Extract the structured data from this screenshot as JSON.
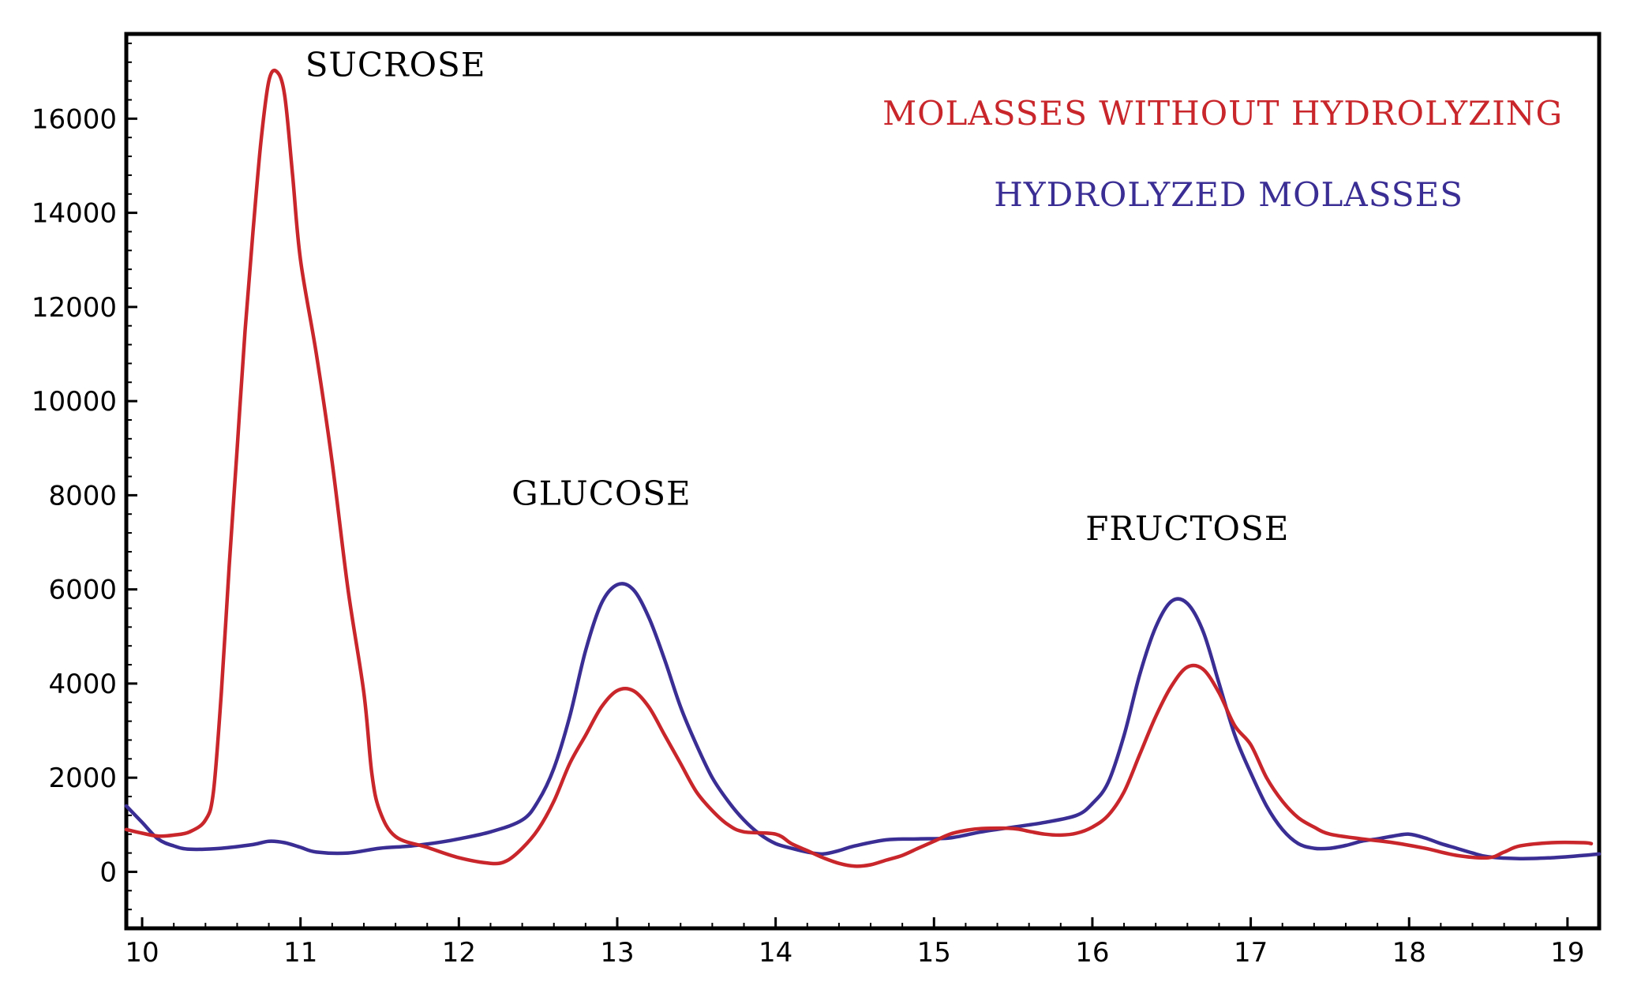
{
  "chart_data": {
    "type": "line",
    "title": "",
    "xlabel": "",
    "ylabel": "",
    "xlim": [
      9.9,
      19.2
    ],
    "ylim": [
      -1200,
      17800
    ],
    "x_ticks": [
      10,
      11,
      12,
      13,
      14,
      15,
      16,
      17,
      18,
      19
    ],
    "x_tick_labels": [
      "10",
      "11",
      "12",
      "13",
      "14",
      "15",
      "16",
      "17",
      "18",
      "19"
    ],
    "y_ticks": [
      0,
      2000,
      4000,
      6000,
      8000,
      10000,
      12000,
      14000,
      16000
    ],
    "y_tick_labels": [
      "0",
      "2000",
      "4000",
      "6000",
      "8000",
      "10000",
      "12000",
      "14000",
      "16000"
    ],
    "grid": false,
    "legend_position": "top-right",
    "annotations": [
      {
        "text": "SUCROSE",
        "x": 11.6,
        "y": 16900
      },
      {
        "text": "GLUCOSE",
        "x": 12.9,
        "y": 7800
      },
      {
        "text": "FRUCTOSE",
        "x": 16.6,
        "y": 7050
      }
    ],
    "series": [
      {
        "name": "MOLASSES WITHOUT HYDROLYZING",
        "color": "#c8262b",
        "points": [
          [
            9.9,
            900
          ],
          [
            10.0,
            820
          ],
          [
            10.1,
            760
          ],
          [
            10.2,
            780
          ],
          [
            10.3,
            850
          ],
          [
            10.4,
            1100
          ],
          [
            10.45,
            1700
          ],
          [
            10.5,
            3800
          ],
          [
            10.55,
            6500
          ],
          [
            10.6,
            9000
          ],
          [
            10.65,
            11500
          ],
          [
            10.7,
            13600
          ],
          [
            10.75,
            15500
          ],
          [
            10.8,
            16800
          ],
          [
            10.85,
            17000
          ],
          [
            10.9,
            16500
          ],
          [
            10.95,
            14800
          ],
          [
            11.0,
            13000
          ],
          [
            11.1,
            11000
          ],
          [
            11.2,
            8700
          ],
          [
            11.3,
            6000
          ],
          [
            11.4,
            3800
          ],
          [
            11.45,
            2100
          ],
          [
            11.5,
            1300
          ],
          [
            11.6,
            750
          ],
          [
            11.8,
            520
          ],
          [
            12.0,
            300
          ],
          [
            12.2,
            180
          ],
          [
            12.3,
            230
          ],
          [
            12.4,
            500
          ],
          [
            12.5,
            900
          ],
          [
            12.6,
            1500
          ],
          [
            12.7,
            2300
          ],
          [
            12.8,
            2900
          ],
          [
            12.9,
            3500
          ],
          [
            13.0,
            3850
          ],
          [
            13.1,
            3850
          ],
          [
            13.2,
            3500
          ],
          [
            13.3,
            2900
          ],
          [
            13.4,
            2300
          ],
          [
            13.5,
            1700
          ],
          [
            13.6,
            1300
          ],
          [
            13.7,
            1000
          ],
          [
            13.8,
            850
          ],
          [
            14.0,
            800
          ],
          [
            14.1,
            600
          ],
          [
            14.2,
            450
          ],
          [
            14.3,
            300
          ],
          [
            14.4,
            180
          ],
          [
            14.5,
            120
          ],
          [
            14.6,
            150
          ],
          [
            14.7,
            250
          ],
          [
            14.8,
            350
          ],
          [
            14.9,
            500
          ],
          [
            15.0,
            650
          ],
          [
            15.1,
            800
          ],
          [
            15.2,
            880
          ],
          [
            15.3,
            920
          ],
          [
            15.5,
            920
          ],
          [
            15.6,
            860
          ],
          [
            15.7,
            800
          ],
          [
            15.8,
            780
          ],
          [
            15.9,
            820
          ],
          [
            16.0,
            950
          ],
          [
            16.1,
            1200
          ],
          [
            16.2,
            1700
          ],
          [
            16.3,
            2500
          ],
          [
            16.4,
            3300
          ],
          [
            16.5,
            3950
          ],
          [
            16.6,
            4350
          ],
          [
            16.7,
            4300
          ],
          [
            16.8,
            3800
          ],
          [
            16.9,
            3100
          ],
          [
            17.0,
            2700
          ],
          [
            17.1,
            2000
          ],
          [
            17.2,
            1500
          ],
          [
            17.3,
            1150
          ],
          [
            17.4,
            950
          ],
          [
            17.5,
            800
          ],
          [
            17.7,
            700
          ],
          [
            17.9,
            620
          ],
          [
            18.1,
            500
          ],
          [
            18.3,
            350
          ],
          [
            18.5,
            300
          ],
          [
            18.6,
            420
          ],
          [
            18.7,
            550
          ],
          [
            18.9,
            620
          ],
          [
            19.1,
            620
          ],
          [
            19.15,
            600
          ]
        ]
      },
      {
        "name": "HYDROLYZED MOLASSES",
        "color": "#3a2d94",
        "points": [
          [
            9.9,
            1400
          ],
          [
            10.0,
            1050
          ],
          [
            10.1,
            700
          ],
          [
            10.2,
            550
          ],
          [
            10.3,
            480
          ],
          [
            10.5,
            500
          ],
          [
            10.7,
            580
          ],
          [
            10.8,
            650
          ],
          [
            10.9,
            620
          ],
          [
            11.0,
            520
          ],
          [
            11.1,
            420
          ],
          [
            11.3,
            400
          ],
          [
            11.5,
            500
          ],
          [
            11.7,
            550
          ],
          [
            11.9,
            640
          ],
          [
            12.0,
            700
          ],
          [
            12.2,
            850
          ],
          [
            12.4,
            1100
          ],
          [
            12.5,
            1500
          ],
          [
            12.6,
            2200
          ],
          [
            12.7,
            3300
          ],
          [
            12.8,
            4700
          ],
          [
            12.9,
            5700
          ],
          [
            13.0,
            6100
          ],
          [
            13.1,
            6000
          ],
          [
            13.2,
            5400
          ],
          [
            13.3,
            4500
          ],
          [
            13.4,
            3500
          ],
          [
            13.5,
            2700
          ],
          [
            13.6,
            2000
          ],
          [
            13.7,
            1500
          ],
          [
            13.8,
            1100
          ],
          [
            13.9,
            800
          ],
          [
            14.0,
            600
          ],
          [
            14.1,
            500
          ],
          [
            14.2,
            420
          ],
          [
            14.3,
            380
          ],
          [
            14.4,
            450
          ],
          [
            14.5,
            550
          ],
          [
            14.7,
            680
          ],
          [
            14.9,
            700
          ],
          [
            15.1,
            720
          ],
          [
            15.3,
            850
          ],
          [
            15.5,
            950
          ],
          [
            15.7,
            1050
          ],
          [
            15.9,
            1200
          ],
          [
            16.0,
            1450
          ],
          [
            16.1,
            1900
          ],
          [
            16.2,
            2900
          ],
          [
            16.3,
            4200
          ],
          [
            16.4,
            5200
          ],
          [
            16.5,
            5750
          ],
          [
            16.6,
            5700
          ],
          [
            16.7,
            5100
          ],
          [
            16.8,
            4000
          ],
          [
            16.9,
            2900
          ],
          [
            17.0,
            2100
          ],
          [
            17.1,
            1400
          ],
          [
            17.2,
            900
          ],
          [
            17.3,
            600
          ],
          [
            17.4,
            500
          ],
          [
            17.5,
            500
          ],
          [
            17.6,
            560
          ],
          [
            17.7,
            650
          ],
          [
            17.8,
            700
          ],
          [
            17.9,
            760
          ],
          [
            18.0,
            800
          ],
          [
            18.1,
            720
          ],
          [
            18.2,
            600
          ],
          [
            18.3,
            500
          ],
          [
            18.4,
            400
          ],
          [
            18.5,
            320
          ],
          [
            18.7,
            280
          ],
          [
            18.9,
            300
          ],
          [
            19.1,
            350
          ],
          [
            19.2,
            380
          ]
        ]
      }
    ]
  }
}
